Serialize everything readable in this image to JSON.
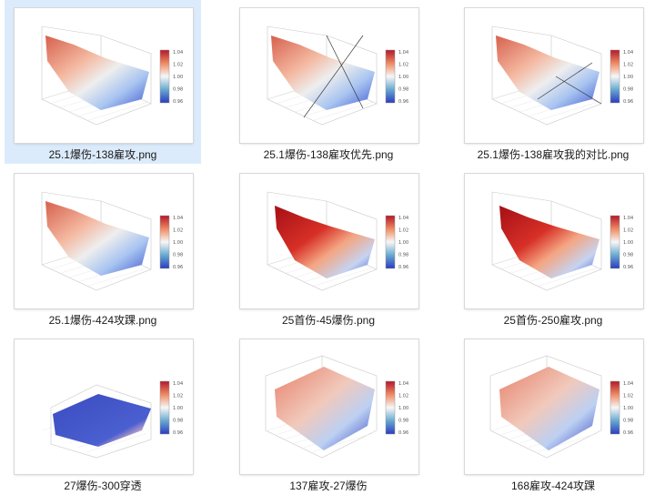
{
  "files": [
    {
      "name": "25.1爆伤-138雇攻.png",
      "selected": true,
      "variant": "a"
    },
    {
      "name": "25.1爆伤-138雇攻优先.png",
      "selected": false,
      "variant": "b"
    },
    {
      "name": "25.1爆伤-138雇攻我的对比.png",
      "selected": false,
      "variant": "c"
    },
    {
      "name": "25.1爆伤-424攻踝.png",
      "selected": false,
      "variant": "d"
    },
    {
      "name": "25首伤-45爆伤.png",
      "selected": false,
      "variant": "e"
    },
    {
      "name": "25首伤-250雇攻.png",
      "selected": false,
      "variant": "f"
    },
    {
      "name": "27爆伤-300穿透",
      "selected": false,
      "variant": "g"
    },
    {
      "name": "137雇攻-27爆伤",
      "selected": false,
      "variant": "h"
    },
    {
      "name": "168雇攻-424攻踝",
      "selected": false,
      "variant": "i"
    }
  ],
  "colorbar": {
    "ticks": [
      "1.04",
      "1.02",
      "1.00",
      "0.98",
      "0.96"
    ],
    "colors": [
      "#b2182b",
      "#ef8a62",
      "#f7f7f7",
      "#67a9cf",
      "#2c3bc0"
    ]
  }
}
